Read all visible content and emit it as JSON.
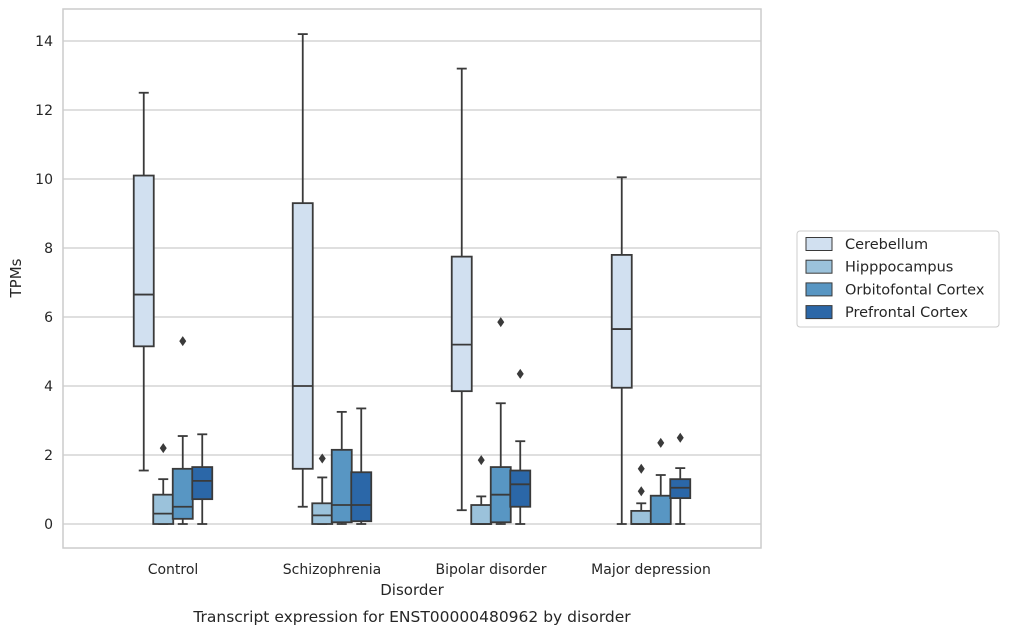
{
  "chart_data": {
    "type": "box",
    "caption": "Transcript expression for ENST00000480962 by disorder",
    "xlabel": "Disorder",
    "ylabel": "TPMs",
    "ylim": [
      -0.7,
      14.9
    ],
    "yticks": [
      0,
      2,
      4,
      6,
      8,
      10,
      12,
      14
    ],
    "grid": true,
    "legend_position": "right-outside",
    "categories": [
      "Control",
      "Schizophrenia",
      "Bipolar disorder",
      "Major depression"
    ],
    "series": [
      {
        "name": "Cerebellum",
        "color": "#d1e0f0",
        "boxes": [
          {
            "whisker_low": 1.55,
            "q1": 5.15,
            "median": 6.65,
            "q3": 10.1,
            "whisker_high": 12.5,
            "outliers": []
          },
          {
            "whisker_low": 0.5,
            "q1": 1.6,
            "median": 4.0,
            "q3": 9.3,
            "whisker_high": 14.2,
            "outliers": []
          },
          {
            "whisker_low": 0.4,
            "q1": 3.85,
            "median": 5.2,
            "q3": 7.75,
            "whisker_high": 13.2,
            "outliers": []
          },
          {
            "whisker_low": 0.0,
            "q1": 3.95,
            "median": 5.65,
            "q3": 7.8,
            "whisker_high": 10.05,
            "outliers": []
          }
        ]
      },
      {
        "name": "Hipppocampus",
        "color": "#9bc2db",
        "boxes": [
          {
            "whisker_low": 0.0,
            "q1": 0.0,
            "median": 0.3,
            "q3": 0.85,
            "whisker_high": 1.3,
            "outliers": [
              2.2
            ]
          },
          {
            "whisker_low": 0.0,
            "q1": 0.0,
            "median": 0.25,
            "q3": 0.6,
            "whisker_high": 1.35,
            "outliers": [
              1.9
            ]
          },
          {
            "whisker_low": 0.0,
            "q1": 0.0,
            "median": 0.0,
            "q3": 0.55,
            "whisker_high": 0.8,
            "outliers": [
              1.85
            ]
          },
          {
            "whisker_low": 0.0,
            "q1": 0.0,
            "median": 0.0,
            "q3": 0.38,
            "whisker_high": 0.6,
            "outliers": [
              0.95,
              1.6
            ]
          }
        ]
      },
      {
        "name": "Orbitofontal Cortex",
        "color": "#5896c3",
        "boxes": [
          {
            "whisker_low": 0.0,
            "q1": 0.15,
            "median": 0.5,
            "q3": 1.6,
            "whisker_high": 2.55,
            "outliers": [
              5.3
            ]
          },
          {
            "whisker_low": 0.0,
            "q1": 0.05,
            "median": 0.55,
            "q3": 2.15,
            "whisker_high": 3.25,
            "outliers": []
          },
          {
            "whisker_low": 0.0,
            "q1": 0.05,
            "median": 0.85,
            "q3": 1.65,
            "whisker_high": 3.5,
            "outliers": [
              5.85
            ]
          },
          {
            "whisker_low": 0.0,
            "q1": 0.0,
            "median": 0.0,
            "q3": 0.82,
            "whisker_high": 1.42,
            "outliers": [
              2.35
            ]
          }
        ]
      },
      {
        "name": "Prefrontal Cortex",
        "color": "#2b67a8",
        "boxes": [
          {
            "whisker_low": 0.0,
            "q1": 0.72,
            "median": 1.25,
            "q3": 1.65,
            "whisker_high": 2.6,
            "outliers": []
          },
          {
            "whisker_low": 0.0,
            "q1": 0.08,
            "median": 0.55,
            "q3": 1.5,
            "whisker_high": 3.35,
            "outliers": []
          },
          {
            "whisker_low": 0.0,
            "q1": 0.5,
            "median": 1.15,
            "q3": 1.55,
            "whisker_high": 2.4,
            "outliers": [
              4.35
            ]
          },
          {
            "whisker_low": 0.0,
            "q1": 0.75,
            "median": 1.05,
            "q3": 1.3,
            "whisker_high": 1.62,
            "outliers": [
              2.5
            ]
          }
        ]
      }
    ]
  }
}
